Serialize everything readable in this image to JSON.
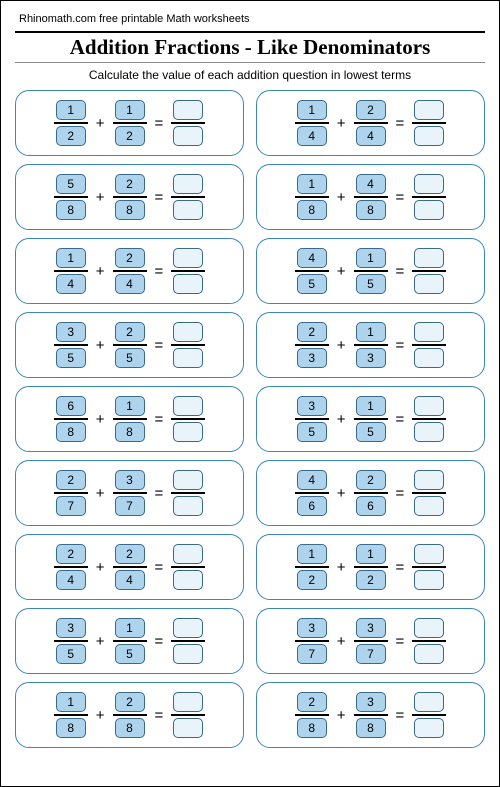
{
  "site_header": "Rhinomath.com free printable Math worksheets",
  "title": "Addition Fractions - Like Denominators",
  "subtitle": "Calculate the value of each addition question in lowest terms",
  "plus_sign": "+",
  "equals_sign": "=",
  "colors": {
    "border": "#3a88b8",
    "cell_filled_bg": "#aed4ed",
    "cell_empty_bg": "#e8f3fa",
    "cell_border": "#3a6a8a",
    "page_bg": "#ffffff"
  },
  "problems": [
    {
      "a_num": "1",
      "a_den": "2",
      "b_num": "1",
      "b_den": "2"
    },
    {
      "a_num": "1",
      "a_den": "4",
      "b_num": "2",
      "b_den": "4"
    },
    {
      "a_num": "5",
      "a_den": "8",
      "b_num": "2",
      "b_den": "8"
    },
    {
      "a_num": "1",
      "a_den": "8",
      "b_num": "4",
      "b_den": "8"
    },
    {
      "a_num": "1",
      "a_den": "4",
      "b_num": "2",
      "b_den": "4"
    },
    {
      "a_num": "4",
      "a_den": "5",
      "b_num": "1",
      "b_den": "5"
    },
    {
      "a_num": "3",
      "a_den": "5",
      "b_num": "2",
      "b_den": "5"
    },
    {
      "a_num": "2",
      "a_den": "3",
      "b_num": "1",
      "b_den": "3"
    },
    {
      "a_num": "6",
      "a_den": "8",
      "b_num": "1",
      "b_den": "8"
    },
    {
      "a_num": "3",
      "a_den": "5",
      "b_num": "1",
      "b_den": "5"
    },
    {
      "a_num": "2",
      "a_den": "7",
      "b_num": "3",
      "b_den": "7"
    },
    {
      "a_num": "4",
      "a_den": "6",
      "b_num": "2",
      "b_den": "6"
    },
    {
      "a_num": "2",
      "a_den": "4",
      "b_num": "2",
      "b_den": "4"
    },
    {
      "a_num": "1",
      "a_den": "2",
      "b_num": "1",
      "b_den": "2"
    },
    {
      "a_num": "3",
      "a_den": "5",
      "b_num": "1",
      "b_den": "5"
    },
    {
      "a_num": "3",
      "a_den": "7",
      "b_num": "3",
      "b_den": "7"
    },
    {
      "a_num": "1",
      "a_den": "8",
      "b_num": "2",
      "b_den": "8"
    },
    {
      "a_num": "2",
      "a_den": "8",
      "b_num": "3",
      "b_den": "8"
    }
  ]
}
